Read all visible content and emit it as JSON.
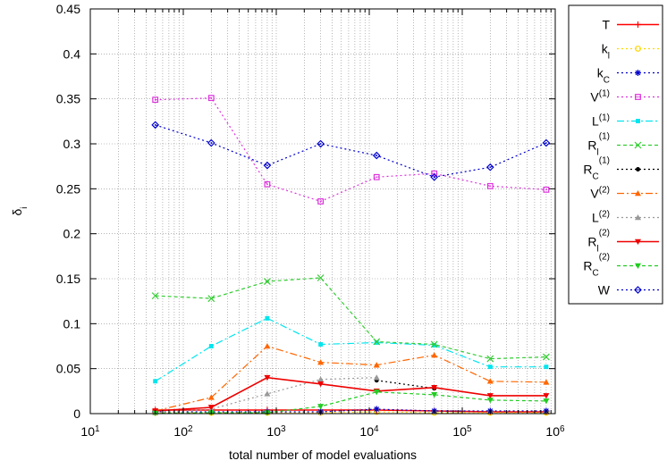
{
  "chart_data": {
    "type": "line",
    "xlabel": "total number of model evaluations",
    "ylabel": "δ",
    "ylabel_sub": "i",
    "x_scale": "log",
    "xlim": [
      10,
      1000000
    ],
    "ylim": [
      0,
      0.45
    ],
    "x_ticks": [
      {
        "value": 10,
        "base": "10",
        "exp": "1"
      },
      {
        "value": 100,
        "base": "10",
        "exp": "2"
      },
      {
        "value": 1000,
        "base": "10",
        "exp": "3"
      },
      {
        "value": 10000,
        "base": "10",
        "exp": "4"
      },
      {
        "value": 100000,
        "base": "10",
        "exp": "5"
      },
      {
        "value": 1000000,
        "base": "10",
        "exp": "6"
      }
    ],
    "y_ticks": [
      {
        "value": 0,
        "label": "0"
      },
      {
        "value": 0.05,
        "label": "0.05"
      },
      {
        "value": 0.1,
        "label": "0.1"
      },
      {
        "value": 0.15,
        "label": "0.15"
      },
      {
        "value": 0.2,
        "label": "0.2"
      },
      {
        "value": 0.25,
        "label": "0.25"
      },
      {
        "value": 0.3,
        "label": "0.3"
      },
      {
        "value": 0.35,
        "label": "0.35"
      },
      {
        "value": 0.4,
        "label": "0.4"
      },
      {
        "value": 0.45,
        "label": "0.45"
      }
    ],
    "grid": true,
    "legend_position": "right, outside plot",
    "series": [
      {
        "name": "T",
        "name_main": "T",
        "name_sub": "",
        "name_sup": "",
        "color": "#ff0000",
        "dash": "",
        "marker": "plus",
        "x": [
          50,
          200,
          800,
          3000,
          12000,
          50000,
          200000,
          800000
        ],
        "y": [
          0.004,
          0.004,
          0.004,
          0.004,
          0.004,
          0.003,
          0.002,
          0.002
        ]
      },
      {
        "name": "k_l",
        "name_main": "k",
        "name_sub": "l",
        "name_sup": "",
        "color": "#ffd700",
        "dash": "2,3",
        "marker": "circle-open",
        "x": [
          50,
          200,
          800,
          3000,
          12000,
          50000,
          200000,
          800000
        ],
        "y": [
          0.001,
          0.001,
          0.001,
          0.001,
          0.002,
          0.001,
          0.001,
          0.001
        ]
      },
      {
        "name": "k_C",
        "name_main": "k",
        "name_sub": "C",
        "name_sup": "",
        "color": "#0000cc",
        "dash": "2,3",
        "marker": "star",
        "x": [
          50,
          200,
          800,
          3000,
          12000,
          50000,
          200000,
          800000
        ],
        "y": [
          0.002,
          0.002,
          0.002,
          0.002,
          0.005,
          0.003,
          0.003,
          0.003
        ]
      },
      {
        "name": "V^(1)",
        "name_main": "V",
        "name_sub": "",
        "name_sup": "(1)",
        "color": "#dd33dd",
        "dash": "2,3",
        "marker": "square-open",
        "x": [
          50,
          200,
          800,
          3000,
          12000,
          50000,
          200000,
          800000
        ],
        "y": [
          0.349,
          0.351,
          0.255,
          0.236,
          0.263,
          0.267,
          0.253,
          0.249
        ]
      },
      {
        "name": "L^(1)",
        "name_main": "L",
        "name_sub": "",
        "name_sup": "(1)",
        "color": "#00e5ee",
        "dash": "8,3,2,3",
        "marker": "square-filled",
        "x": [
          50,
          200,
          800,
          3000,
          12000,
          50000,
          200000,
          800000
        ],
        "y": [
          0.036,
          0.075,
          0.106,
          0.077,
          0.079,
          0.076,
          0.052,
          0.052
        ]
      },
      {
        "name": "R_l^(1)",
        "name_main": "R",
        "name_sub": "l",
        "name_sup": "(1)",
        "color": "#33cc33",
        "dash": "4,3",
        "marker": "cross",
        "x": [
          50,
          200,
          800,
          3000,
          12000,
          50000,
          200000,
          800000
        ],
        "y": [
          0.131,
          0.128,
          0.147,
          0.151,
          0.08,
          0.077,
          0.061,
          0.063
        ]
      },
      {
        "name": "R_C^(1)",
        "name_main": "R",
        "name_sub": "C",
        "name_sup": "(1)",
        "color": "#000000",
        "dash": "2,3",
        "marker": "circle-filled",
        "x": [
          12000,
          50000
        ],
        "y": [
          0.037,
          0.028
        ]
      },
      {
        "name": "V^(2)",
        "name_main": "V",
        "name_sub": "",
        "name_sup": "(2)",
        "color": "#ff6600",
        "dash": "8,3,2,3",
        "marker": "triangle-up",
        "x": [
          50,
          200,
          800,
          3000,
          12000,
          50000,
          200000,
          800000
        ],
        "y": [
          0.003,
          0.018,
          0.075,
          0.057,
          0.054,
          0.065,
          0.036,
          0.035
        ]
      },
      {
        "name": "L^(2)",
        "name_main": "L",
        "name_sub": "",
        "name_sup": "(2)",
        "color": "#999999",
        "dash": "2,3",
        "marker": "triangle-up",
        "x": [
          50,
          200,
          800,
          3000,
          12000
        ],
        "y": [
          0.001,
          0.005,
          0.022,
          0.038,
          0.04
        ]
      },
      {
        "name": "R_l^(2)",
        "name_main": "R",
        "name_sub": "l",
        "name_sup": "(2)",
        "color": "#ee0000",
        "dash": "",
        "marker": "triangle-down",
        "x": [
          50,
          200,
          800,
          3000,
          12000,
          50000,
          200000,
          800000
        ],
        "y": [
          0.003,
          0.007,
          0.04,
          0.033,
          0.025,
          0.029,
          0.02,
          0.02
        ]
      },
      {
        "name": "R_C^(2)",
        "name_main": "R",
        "name_sub": "C",
        "name_sup": "(2)",
        "color": "#22cc22",
        "dash": "4,3",
        "marker": "triangle-down",
        "x": [
          50,
          200,
          800,
          3000,
          12000,
          50000,
          200000,
          800000
        ],
        "y": [
          0.0005,
          0.001,
          0.001,
          0.008,
          0.024,
          0.021,
          0.015,
          0.014
        ]
      },
      {
        "name": "W",
        "name_main": "W",
        "name_sub": "",
        "name_sup": "",
        "color": "#0000cc",
        "dash": "2,3",
        "marker": "diamond-open",
        "x": [
          50,
          200,
          800,
          3000,
          12000,
          50000,
          200000,
          800000
        ],
        "y": [
          0.321,
          0.301,
          0.276,
          0.3,
          0.287,
          0.263,
          0.274,
          0.301
        ]
      }
    ]
  }
}
